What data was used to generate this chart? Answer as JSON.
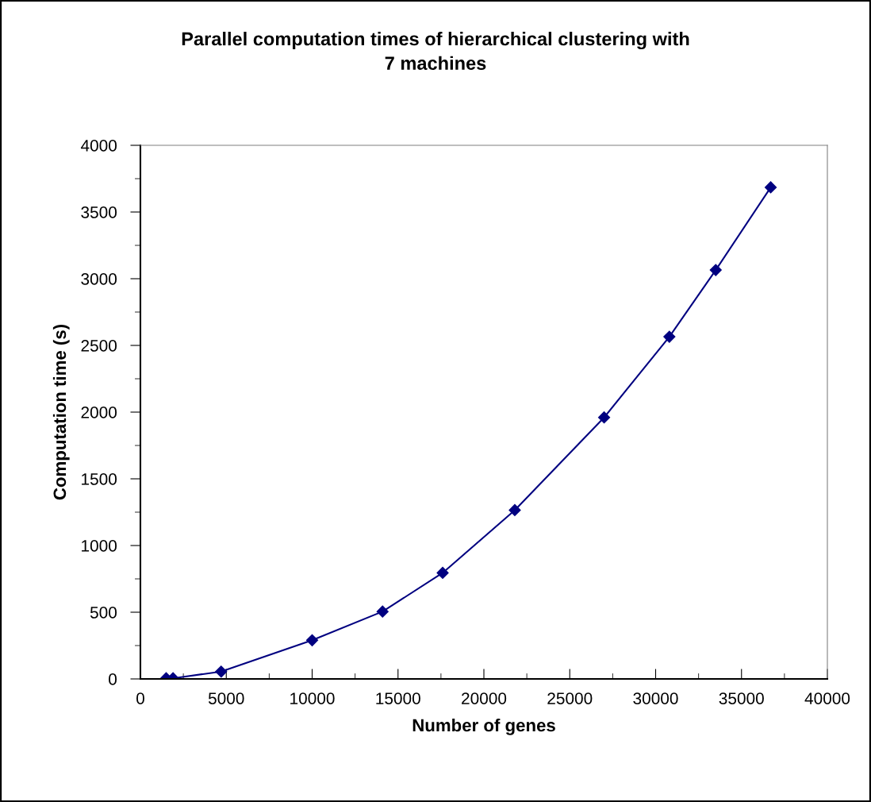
{
  "chart_data": {
    "type": "line",
    "title": "Parallel computation times of hierarchical clustering with\n7 machines",
    "xlabel": "Number of genes",
    "ylabel": "Computation time (s)",
    "x": [
      1500,
      1900,
      4700,
      10000,
      14100,
      17600,
      21800,
      27000,
      30800,
      33500,
      36700
    ],
    "series": [
      {
        "color": "#000080",
        "values": [
          5,
          5,
          55,
          290,
          505,
          795,
          1265,
          1960,
          2565,
          3065,
          3685
        ]
      }
    ],
    "xlim": [
      0,
      40000
    ],
    "xticks": [
      0,
      5000,
      10000,
      15000,
      20000,
      25000,
      30000,
      35000,
      40000
    ],
    "ylim": [
      0,
      4000
    ],
    "yticks": [
      0,
      500,
      1000,
      1500,
      2000,
      2500,
      3000,
      3500,
      4000
    ],
    "marker": "diamond",
    "line_style": "solid",
    "grid": false,
    "legend": false
  }
}
